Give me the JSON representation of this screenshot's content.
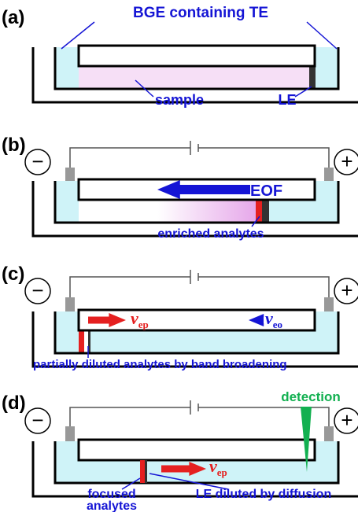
{
  "panels": [
    {
      "label": "(a)",
      "top_label": "BGE containing TE",
      "sample": "sample",
      "le": "LE"
    },
    {
      "label": "(b)",
      "minus": "−",
      "plus": "+",
      "flow": "EOF",
      "caption": "enriched analytes"
    },
    {
      "label": "(c)",
      "minus": "−",
      "plus": "+",
      "vep": {
        "symbol": "v",
        "subscript": "ep"
      },
      "veo": {
        "symbol": "v",
        "subscript": "eo"
      },
      "caption": "partially diluted analytes by band broadening"
    },
    {
      "label": "(d)",
      "minus": "−",
      "plus": "+",
      "detector": "detection",
      "vep": {
        "symbol": "v",
        "subscript": "ep"
      },
      "focused": [
        "focused",
        "analytes"
      ],
      "le": "LE diluted by diffusion"
    }
  ]
}
